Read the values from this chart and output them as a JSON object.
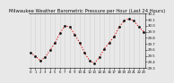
{
  "title": "Milwaukee Weather Barometric Pressure per Hour (Last 24 Hours)",
  "x_values": [
    0,
    1,
    2,
    3,
    4,
    5,
    6,
    7,
    8,
    9,
    10,
    11,
    12,
    13,
    14,
    15,
    16,
    17,
    18,
    19,
    20,
    21,
    22,
    23
  ],
  "y_values": [
    29.55,
    29.5,
    29.42,
    29.48,
    29.6,
    29.72,
    29.88,
    30.0,
    29.98,
    29.85,
    29.72,
    29.55,
    29.42,
    29.38,
    29.48,
    29.62,
    29.72,
    29.82,
    29.98,
    30.08,
    30.12,
    30.08,
    29.98,
    29.9
  ],
  "ylim_min": 29.3,
  "ylim_max": 30.2,
  "line_color": "#dd0000",
  "marker_color": "#111111",
  "bg_color": "#e8e8e8",
  "grid_color": "#bbbbbb",
  "tick_label_color": "#111111",
  "title_color": "#111111",
  "title_fontsize": 3.8,
  "tick_fontsize": 2.8,
  "y_ticks": [
    29.3,
    29.4,
    29.5,
    29.6,
    29.7,
    29.8,
    29.9,
    30.0,
    30.1,
    30.2
  ],
  "y_tick_labels": [
    "29.3",
    "29.4",
    "29.5",
    "29.6",
    "29.7",
    "29.8",
    "29.9",
    "30.0",
    "30.1",
    "30.2"
  ],
  "x_tick_positions": [
    0,
    1,
    2,
    3,
    4,
    5,
    6,
    7,
    8,
    9,
    10,
    11,
    12,
    13,
    14,
    15,
    16,
    17,
    18,
    19,
    20,
    21,
    22,
    23
  ],
  "x_tick_labels": [
    "0",
    "1",
    "2",
    "3",
    "4",
    "5",
    "6",
    "7",
    "8",
    "9",
    "10",
    "11",
    "12",
    "13",
    "14",
    "15",
    "16",
    "17",
    "18",
    "19",
    "20",
    "21",
    "22",
    "23"
  ],
  "vgrid_positions": [
    0,
    1,
    2,
    3,
    4,
    5,
    6,
    7,
    8,
    9,
    10,
    11,
    12,
    13,
    14,
    15,
    16,
    17,
    18,
    19,
    20,
    21,
    22,
    23
  ]
}
